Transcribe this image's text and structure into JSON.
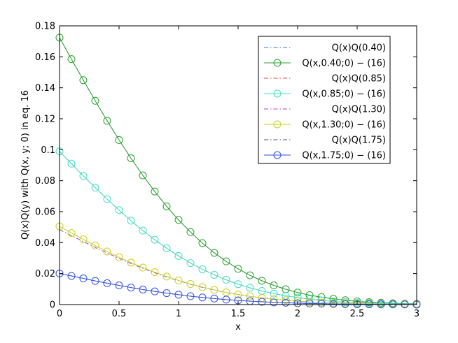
{
  "chart_data": {
    "type": "line",
    "xlabel": "x",
    "ylabel": "Q(x)Q(y) with Q(x, y; 0) in eq. 16",
    "xlim": [
      0,
      3
    ],
    "ylim": [
      0,
      0.18
    ],
    "xticks": [
      0,
      0.5,
      1,
      1.5,
      2,
      2.5,
      3
    ],
    "xtick_labels": [
      "0",
      "0.5",
      "1",
      "1.5",
      "2",
      "2.5",
      "3"
    ],
    "yticks": [
      0,
      0.02,
      0.04,
      0.06,
      0.08,
      0.1,
      0.12,
      0.14,
      0.16,
      0.18
    ],
    "ytick_labels": [
      "0",
      "0.02",
      "0.04",
      "0.06",
      "0.08",
      "0.1",
      "0.12",
      "0.14",
      "0.16",
      "0.18"
    ],
    "grid": false,
    "legend_position": "top-right",
    "x": [
      0,
      0.1,
      0.2,
      0.3,
      0.4,
      0.5,
      0.6,
      0.7,
      0.8,
      0.9,
      1.0,
      1.1,
      1.2,
      1.3,
      1.4,
      1.5,
      1.6,
      1.7,
      1.8,
      1.9,
      2.0,
      2.1,
      2.2,
      2.3,
      2.4,
      2.5,
      2.6,
      2.7,
      2.8,
      2.9,
      3.0
    ],
    "series": [
      {
        "name": "Q(x)Q(0.40)",
        "style": "dashdot",
        "color": "#4a6fd0",
        "values": [
          0.1724,
          0.1585,
          0.1449,
          0.1316,
          0.1187,
          0.1063,
          0.0945,
          0.0834,
          0.073,
          0.0634,
          0.0547,
          0.0468,
          0.0397,
          0.0334,
          0.0279,
          0.0231,
          0.0189,
          0.0154,
          0.0124,
          0.0099,
          0.0078,
          0.0061,
          0.0048,
          0.0037,
          0.0028,
          0.0021,
          0.0016,
          0.0012,
          0.0009,
          0.0006,
          0.0005
        ]
      },
      {
        "name": "Q(x,0.40;0) − (16)",
        "style": "solid-circle",
        "color": "#2ca02c",
        "values": [
          0.1724,
          0.1585,
          0.1449,
          0.1316,
          0.1187,
          0.1063,
          0.0945,
          0.0834,
          0.073,
          0.0634,
          0.0547,
          0.0468,
          0.0397,
          0.0334,
          0.0279,
          0.0231,
          0.0189,
          0.0154,
          0.0124,
          0.0099,
          0.0078,
          0.0061,
          0.0048,
          0.0037,
          0.0028,
          0.0021,
          0.0016,
          0.0012,
          0.0009,
          0.0006,
          0.0005
        ]
      },
      {
        "name": "Q(x)Q(0.85)",
        "style": "dashdot",
        "color": "#e8402a",
        "values": [
          0.0989,
          0.091,
          0.0831,
          0.0755,
          0.0681,
          0.061,
          0.0542,
          0.0478,
          0.0419,
          0.0364,
          0.0314,
          0.0268,
          0.0228,
          0.0192,
          0.016,
          0.0132,
          0.0108,
          0.0088,
          0.0071,
          0.0057,
          0.0045,
          0.0035,
          0.0027,
          0.0021,
          0.0016,
          0.0012,
          0.0009,
          0.0007,
          0.0005,
          0.0004,
          0.0003
        ]
      },
      {
        "name": "Q(x,0.85;0) − (16)",
        "style": "solid-circle",
        "color": "#40e0c8",
        "values": [
          0.0989,
          0.091,
          0.0831,
          0.0755,
          0.0681,
          0.061,
          0.0542,
          0.0478,
          0.0419,
          0.0364,
          0.0314,
          0.0268,
          0.0228,
          0.0192,
          0.016,
          0.0132,
          0.0108,
          0.0088,
          0.0071,
          0.0057,
          0.0045,
          0.0035,
          0.0027,
          0.0021,
          0.0016,
          0.0012,
          0.0009,
          0.0007,
          0.0005,
          0.0004,
          0.0003
        ]
      },
      {
        "name": "Q(x)Q(1.30)",
        "style": "dashdot",
        "color": "#a040d0",
        "values": [
          0.0484,
          0.0445,
          0.0407,
          0.0369,
          0.0333,
          0.0298,
          0.0265,
          0.0234,
          0.0205,
          0.0178,
          0.0154,
          0.0131,
          0.0111,
          0.0094,
          0.0078,
          0.0065,
          0.0053,
          0.0043,
          0.0035,
          0.0028,
          0.0022,
          0.0017,
          0.0013,
          0.001,
          0.0008,
          0.0006,
          0.0005,
          0.0003,
          0.0002,
          0.0002,
          0.0001
        ]
      },
      {
        "name": "Q(x,1.30;0) − (16)",
        "style": "solid-circle",
        "color": "#c8d020",
        "values": [
          0.0505,
          0.0462,
          0.0421,
          0.0381,
          0.0343,
          0.0306,
          0.0271,
          0.0239,
          0.0209,
          0.0181,
          0.0156,
          0.0133,
          0.0113,
          0.0095,
          0.0079,
          0.0065,
          0.0053,
          0.0043,
          0.0035,
          0.0028,
          0.0022,
          0.0017,
          0.0013,
          0.001,
          0.0008,
          0.0006,
          0.0005,
          0.0003,
          0.0002,
          0.0002,
          0.0001
        ]
      },
      {
        "name": "Q(x)Q(1.75)",
        "style": "dashdot",
        "color": "#555555",
        "values": [
          0.0201,
          0.0185,
          0.0169,
          0.0153,
          0.0138,
          0.0124,
          0.011,
          0.0097,
          0.0085,
          0.0074,
          0.0064,
          0.0054,
          0.0046,
          0.0039,
          0.0032,
          0.0027,
          0.0022,
          0.0018,
          0.0014,
          0.0012,
          0.0009,
          0.0007,
          0.0006,
          0.0004,
          0.0003,
          0.0002,
          0.0002,
          0.0001,
          0.0001,
          0.0001,
          0.0
        ]
      },
      {
        "name": "Q(x,1.75;0) − (16)",
        "style": "solid-circle",
        "color": "#3050e0",
        "values": [
          0.0201,
          0.0185,
          0.0169,
          0.0153,
          0.0138,
          0.0124,
          0.011,
          0.0097,
          0.0085,
          0.0074,
          0.0064,
          0.0054,
          0.0046,
          0.0039,
          0.0032,
          0.0027,
          0.0022,
          0.0018,
          0.0014,
          0.0012,
          0.0009,
          0.0007,
          0.0006,
          0.0004,
          0.0003,
          0.0002,
          0.0002,
          0.0001,
          0.0001,
          0.0001,
          0.0
        ]
      }
    ]
  }
}
